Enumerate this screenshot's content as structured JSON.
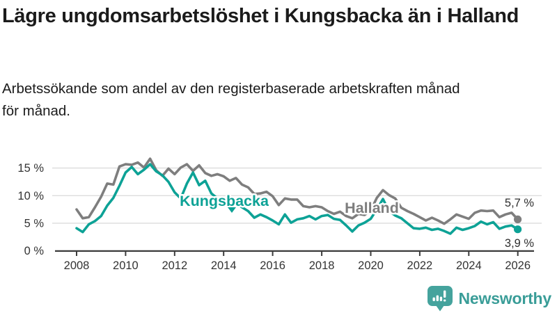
{
  "header": {
    "title": "Lägre ungdomsarbetslöshet i Kungsbacka än i Halland",
    "subtitle": "Arbetssökande som andel av den registerbaserade arbetskraften månad för månad.",
    "subtitle_line1": "Arbetssökande som andel av den registerbaserade arbetskraften månad",
    "subtitle_line2": "för månad."
  },
  "branding": {
    "logo_text": "Newsworthy",
    "logo_icon": "bar-chart-speech-bubble-icon",
    "logo_icon_color": "#45a39d",
    "logo_text_color": "#3a9d98"
  },
  "chart_data": {
    "type": "line",
    "unit": "%",
    "grid": "horizontal",
    "ylim": [
      0,
      18
    ],
    "xlim": [
      2008,
      2026
    ],
    "y_tick_labels": [
      "0 %",
      "5 %",
      "10 %",
      "15 %"
    ],
    "y_tick_values": [
      0,
      5,
      10,
      15
    ],
    "x_tick_labels": [
      "2008",
      "2010",
      "2012",
      "2014",
      "2016",
      "2018",
      "2020",
      "2022",
      "2024",
      "2026"
    ],
    "x_tick_values": [
      2008,
      2010,
      2012,
      2014,
      2016,
      2018,
      2020,
      2022,
      2024,
      2026
    ],
    "x": [
      2008,
      2008.25,
      2008.5,
      2008.75,
      2009,
      2009.25,
      2009.5,
      2009.75,
      2010,
      2010.25,
      2010.5,
      2010.75,
      2011,
      2011.25,
      2011.5,
      2011.75,
      2012,
      2012.25,
      2012.5,
      2012.75,
      2013,
      2013.25,
      2013.5,
      2013.75,
      2014,
      2014.25,
      2014.5,
      2014.75,
      2015,
      2015.25,
      2015.5,
      2015.75,
      2016,
      2016.25,
      2016.5,
      2016.75,
      2017,
      2017.25,
      2017.5,
      2017.75,
      2018,
      2018.25,
      2018.5,
      2018.75,
      2019,
      2019.25,
      2019.5,
      2019.75,
      2020,
      2020.25,
      2020.5,
      2020.75,
      2021,
      2021.25,
      2021.5,
      2021.75,
      2022,
      2022.25,
      2022.5,
      2022.75,
      2023,
      2023.25,
      2023.5,
      2023.75,
      2024,
      2024.25,
      2024.5,
      2024.75,
      2025,
      2025.25,
      2025.5,
      2025.75,
      2026
    ],
    "series": [
      {
        "id": "kungsbacka",
        "name": "Kungsbacka",
        "color": "#0da296",
        "end_label": "3,9 %",
        "end_value": 3.9,
        "values": [
          4.1,
          3.4,
          4.8,
          5.4,
          6.3,
          8.2,
          9.6,
          11.8,
          14.2,
          15.2,
          13.9,
          14.7,
          15.7,
          14.4,
          13.7,
          12.5,
          10.6,
          9.5,
          12.2,
          14.2,
          11.9,
          12.7,
          10.4,
          9.5,
          8.9,
          8.1,
          8.6,
          7.9,
          7.2,
          6.0,
          6.6,
          6.1,
          5.5,
          4.8,
          6.6,
          5.1,
          5.7,
          5.9,
          6.3,
          5.7,
          6.3,
          6.5,
          5.8,
          5.6,
          4.6,
          3.5,
          4.6,
          5.1,
          5.8,
          7.5,
          9.4,
          7.2,
          6.4,
          5.9,
          5.0,
          4.1,
          4.0,
          4.2,
          3.8,
          4.0,
          3.6,
          3.1,
          4.2,
          3.8,
          4.1,
          4.5,
          5.3,
          4.8,
          5.2,
          4.0,
          4.4,
          4.6,
          3.9
        ]
      },
      {
        "id": "halland",
        "name": "Halland",
        "color": "#7e7e7e",
        "end_label": "5,7 %",
        "end_value": 5.7,
        "values": [
          7.5,
          5.9,
          6.1,
          7.9,
          9.8,
          12.2,
          12.0,
          15.3,
          15.7,
          15.6,
          16.0,
          15.1,
          16.7,
          14.6,
          13.6,
          14.9,
          13.9,
          15.1,
          15.7,
          14.5,
          15.5,
          14.1,
          13.6,
          13.9,
          13.5,
          12.7,
          13.2,
          12.0,
          11.5,
          10.3,
          10.4,
          10.7,
          9.9,
          8.3,
          9.5,
          9.3,
          9.3,
          8.1,
          7.9,
          8.1,
          7.9,
          7.2,
          6.7,
          7.1,
          6.3,
          5.9,
          6.7,
          6.5,
          7.3,
          9.6,
          11.0,
          10.1,
          9.5,
          7.8,
          7.2,
          6.7,
          6.1,
          5.5,
          6.0,
          5.5,
          4.9,
          5.7,
          6.6,
          6.2,
          5.8,
          6.9,
          7.3,
          7.2,
          7.3,
          6.1,
          6.6,
          6.9,
          5.7
        ]
      }
    ]
  }
}
